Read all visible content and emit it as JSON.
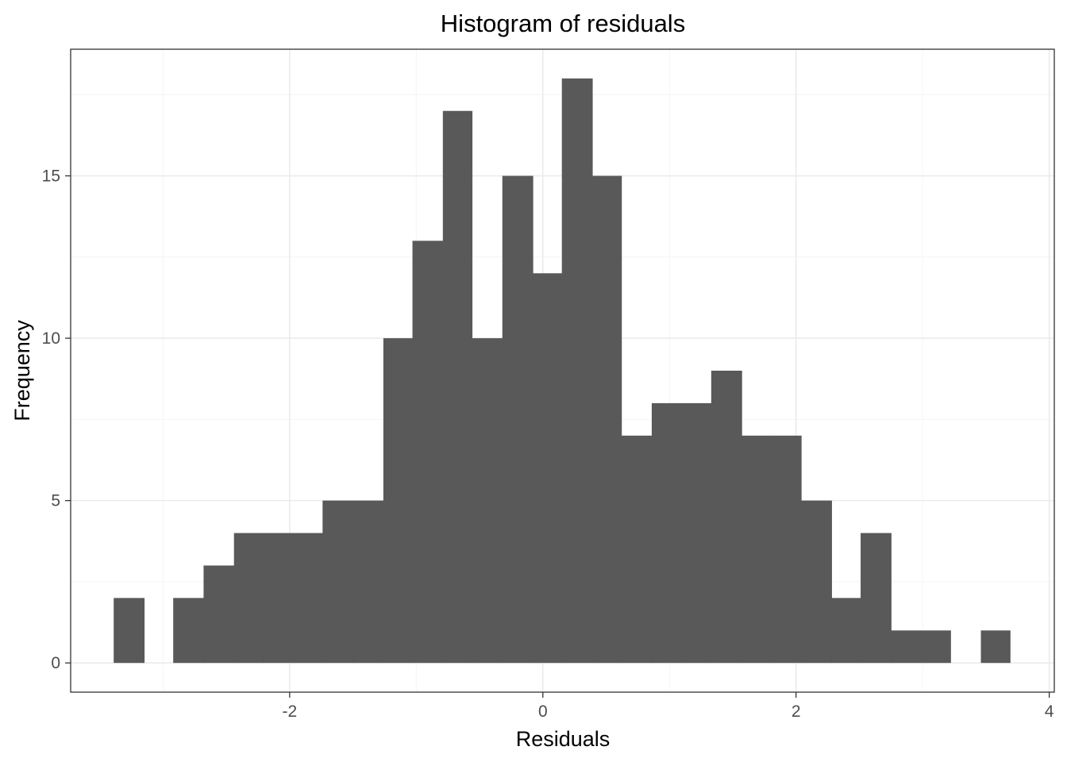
{
  "chart_data": {
    "type": "histogram",
    "title": "Histogram of residuals",
    "xlabel": "Residuals",
    "ylabel": "Frequency",
    "bar_color": "#595959",
    "bins": [
      {
        "start": -3.39,
        "end": -3.15,
        "count": 2
      },
      {
        "start": -3.15,
        "end": -2.92,
        "count": 0
      },
      {
        "start": -2.92,
        "end": -2.68,
        "count": 2
      },
      {
        "start": -2.68,
        "end": -2.44,
        "count": 3
      },
      {
        "start": -2.44,
        "end": -2.21,
        "count": 4
      },
      {
        "start": -2.21,
        "end": -1.97,
        "count": 4
      },
      {
        "start": -1.97,
        "end": -1.74,
        "count": 4
      },
      {
        "start": -1.74,
        "end": -1.5,
        "count": 5
      },
      {
        "start": -1.5,
        "end": -1.26,
        "count": 5
      },
      {
        "start": -1.26,
        "end": -1.03,
        "count": 10
      },
      {
        "start": -1.03,
        "end": -0.79,
        "count": 13
      },
      {
        "start": -0.79,
        "end": -0.56,
        "count": 17
      },
      {
        "start": -0.56,
        "end": -0.32,
        "count": 10
      },
      {
        "start": -0.32,
        "end": -0.08,
        "count": 15
      },
      {
        "start": -0.08,
        "end": 0.15,
        "count": 12
      },
      {
        "start": 0.15,
        "end": 0.39,
        "count": 18
      },
      {
        "start": 0.39,
        "end": 0.62,
        "count": 15
      },
      {
        "start": 0.62,
        "end": 0.86,
        "count": 7
      },
      {
        "start": 0.86,
        "end": 1.1,
        "count": 8
      },
      {
        "start": 1.1,
        "end": 1.33,
        "count": 8
      },
      {
        "start": 1.33,
        "end": 1.57,
        "count": 9
      },
      {
        "start": 1.57,
        "end": 1.8,
        "count": 7
      },
      {
        "start": 1.8,
        "end": 2.04,
        "count": 7
      },
      {
        "start": 2.04,
        "end": 2.28,
        "count": 5
      },
      {
        "start": 2.28,
        "end": 2.51,
        "count": 2
      },
      {
        "start": 2.51,
        "end": 2.75,
        "count": 4
      },
      {
        "start": 2.75,
        "end": 2.98,
        "count": 1
      },
      {
        "start": 2.98,
        "end": 3.22,
        "count": 1
      },
      {
        "start": 3.22,
        "end": 3.46,
        "count": 0
      },
      {
        "start": 3.46,
        "end": 3.69,
        "count": 1
      }
    ],
    "xlim": [
      -3.73,
      4.04
    ],
    "ylim": [
      -0.9,
      18.9
    ],
    "x_ticks": [
      {
        "value": -2,
        "label": "-2"
      },
      {
        "value": 0,
        "label": "0"
      },
      {
        "value": 2,
        "label": "2"
      },
      {
        "value": 4,
        "label": "4"
      }
    ],
    "x_minor_ticks": [
      -3,
      -1,
      1,
      3
    ],
    "y_ticks": [
      {
        "value": 0,
        "label": "0"
      },
      {
        "value": 5,
        "label": "5"
      },
      {
        "value": 10,
        "label": "10"
      },
      {
        "value": 15,
        "label": "15"
      }
    ],
    "y_minor_ticks": [
      2.5,
      7.5,
      12.5,
      17.5
    ],
    "grid": true,
    "legend": "none"
  }
}
